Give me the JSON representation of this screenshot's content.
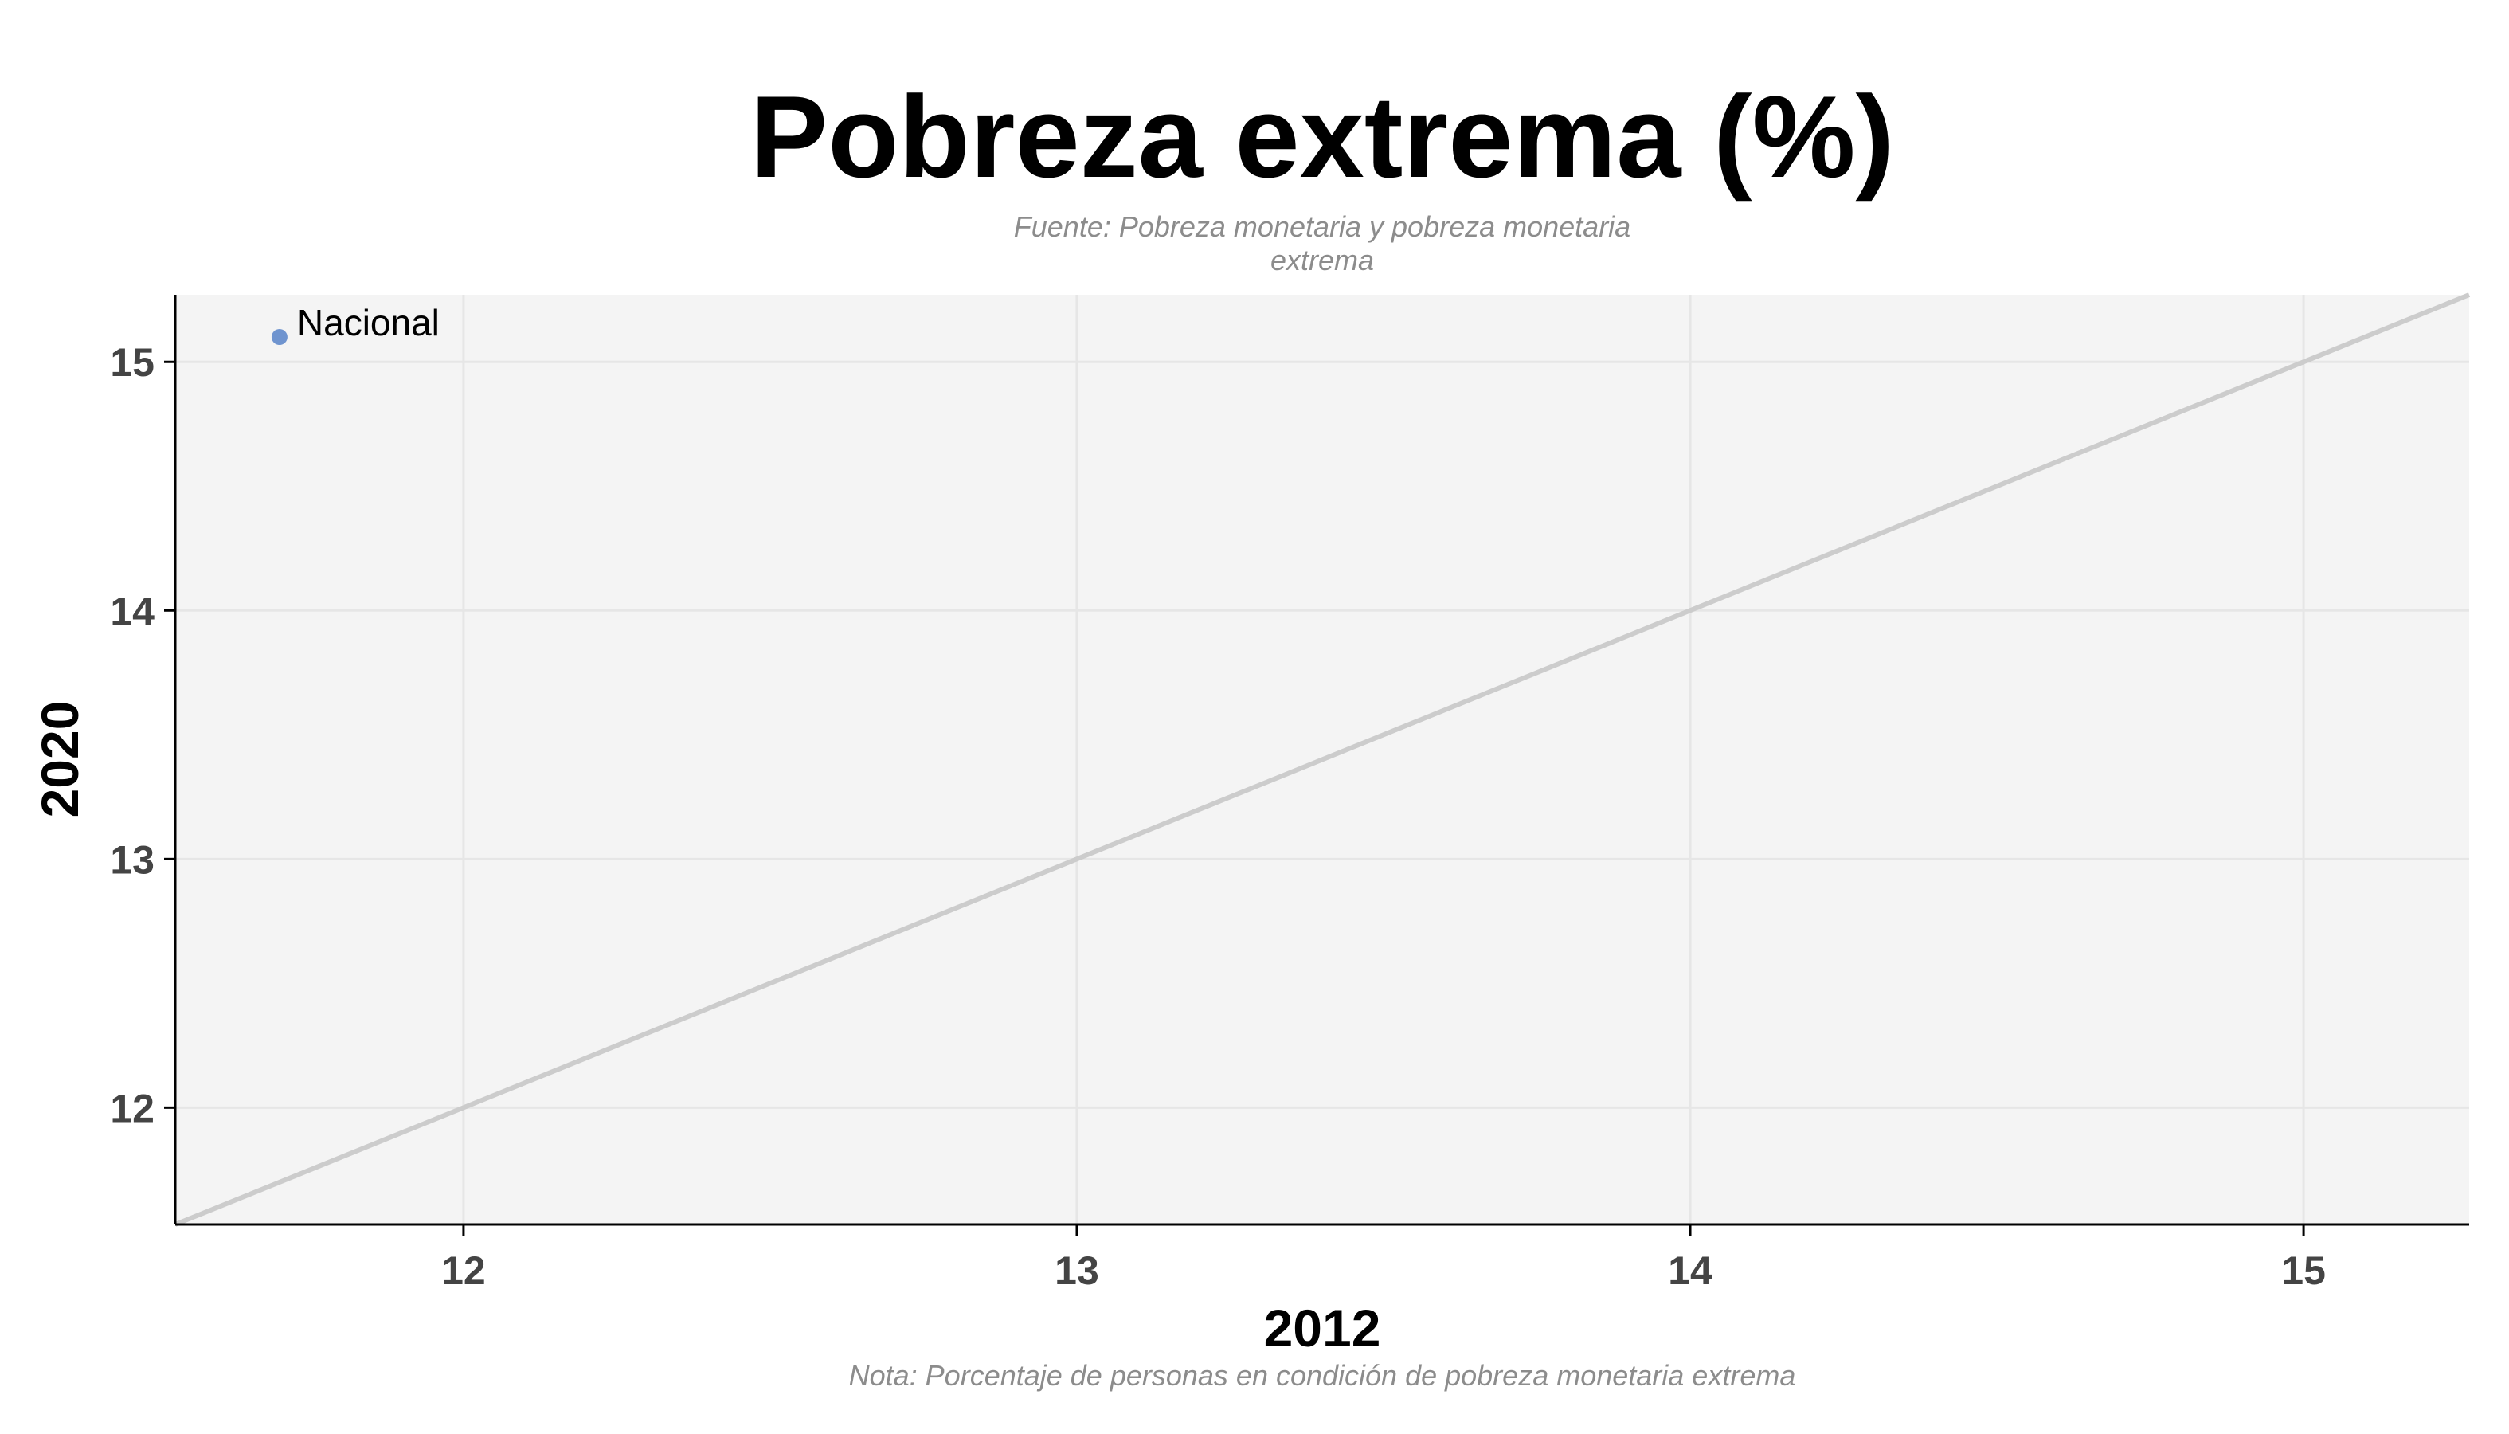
{
  "chart_data": {
    "type": "scatter",
    "title": "Pobreza extrema (%)",
    "subtitle_lines": [
      "Fuente: Pobreza monetaria y pobreza monetaria",
      "extrema"
    ],
    "caption": "Nota: Porcentaje de personas en condición de pobreza monetaria extrema",
    "xlabel": "2012",
    "ylabel": "2020",
    "xlim": [
      11.53,
      15.27
    ],
    "ylim": [
      11.53,
      15.27
    ],
    "x_ticks": [
      12,
      13,
      14,
      15
    ],
    "y_ticks": [
      12,
      13,
      14,
      15
    ],
    "grid": true,
    "reference_line": "y = x",
    "points": [
      {
        "label": "Nacional",
        "x": 11.7,
        "y": 15.1
      }
    ],
    "colors": {
      "point": "#6f94cf",
      "reference_line": "#cccccc",
      "panel_background": "#f4f4f4",
      "grid": "#e6e6e6"
    }
  }
}
